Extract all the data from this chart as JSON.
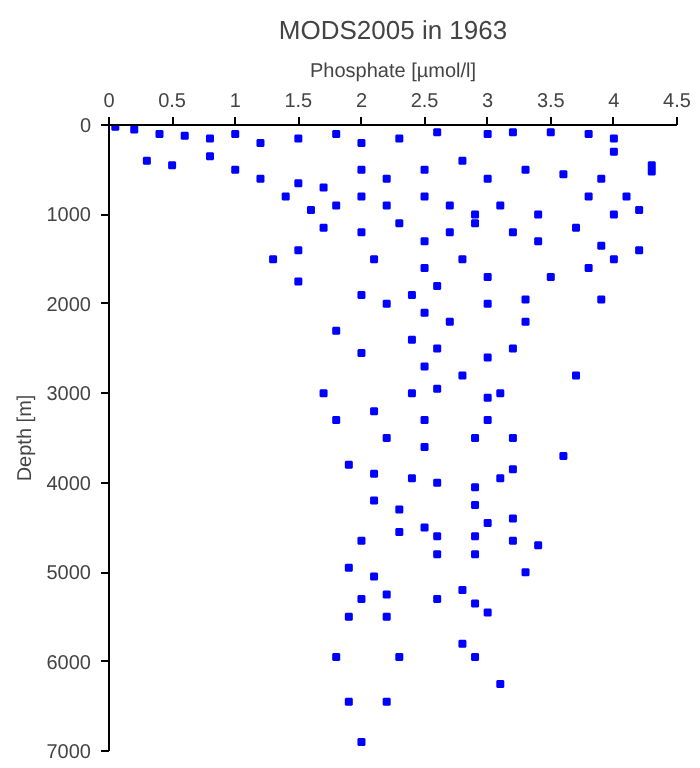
{
  "chart_data": {
    "type": "scatter",
    "title": "MODS2005 in 1963",
    "xlabel": "Phosphate [µmol/l]",
    "ylabel": "Depth [m]",
    "xlim": [
      0,
      4.5
    ],
    "xticks": [
      0,
      0.5,
      1,
      1.5,
      2,
      2.5,
      3,
      3.5,
      4,
      4.5
    ],
    "ylim": [
      7000,
      0
    ],
    "yticks": [
      0,
      1000,
      2000,
      3000,
      4000,
      5000,
      6000,
      7000
    ],
    "grid": false,
    "marker": "square",
    "series": [
      {
        "color": "#0000ff",
        "x": [
          0.05,
          0.2,
          0.4,
          0.6,
          0.8,
          1.0,
          1.2,
          1.5,
          1.8,
          2.0,
          2.3,
          2.6,
          3.0,
          3.2,
          3.5,
          3.8,
          4.0,
          4.3,
          4.3,
          0.3,
          0.5,
          0.8,
          1.0,
          1.2,
          1.5,
          1.7,
          2.0,
          2.2,
          2.5,
          2.8,
          3.0,
          3.3,
          3.6,
          3.9,
          4.0,
          1.4,
          1.6,
          1.8,
          2.0,
          2.2,
          2.5,
          2.7,
          2.9,
          3.1,
          3.4,
          3.8,
          4.1,
          4.0,
          4.2,
          1.7,
          2.0,
          2.3,
          2.5,
          2.7,
          2.9,
          3.2,
          3.4,
          3.7,
          3.9,
          4.2,
          4.0,
          1.3,
          1.5,
          2.1,
          2.5,
          2.8,
          3.0,
          3.5,
          3.8,
          1.5,
          2.0,
          2.4,
          2.6,
          3.0,
          3.3,
          3.9,
          2.2,
          2.5,
          2.7,
          1.8,
          2.4,
          2.6,
          3.2,
          3.3,
          2.0,
          2.5,
          2.8,
          3.0,
          3.7,
          1.7,
          2.4,
          2.6,
          3.0,
          3.1,
          1.8,
          2.1,
          2.5,
          3.0,
          2.2,
          2.5,
          2.9,
          3.2,
          3.6,
          1.9,
          2.1,
          2.4,
          2.6,
          2.9,
          3.1,
          3.2,
          2.1,
          2.3,
          2.5,
          2.9,
          3.0,
          3.2,
          2.0,
          2.3,
          2.6,
          2.9,
          3.2,
          3.4,
          1.9,
          2.1,
          2.6,
          2.9,
          3.3,
          2.0,
          2.2,
          2.6,
          2.8,
          2.9,
          1.9,
          2.2,
          3.0,
          2.8,
          2.9,
          1.8,
          2.3,
          1.9,
          2.2,
          3.1,
          2.0
        ],
        "values": [
          20,
          50,
          100,
          120,
          150,
          100,
          200,
          150,
          100,
          200,
          150,
          80,
          100,
          80,
          80,
          100,
          150,
          450,
          520,
          400,
          450,
          350,
          500,
          600,
          650,
          700,
          500,
          600,
          500,
          400,
          600,
          500,
          550,
          600,
          300,
          800,
          950,
          900,
          800,
          900,
          800,
          900,
          1000,
          900,
          1000,
          800,
          800,
          1000,
          950,
          1150,
          1200,
          1100,
          1300,
          1200,
          1100,
          1200,
          1300,
          1150,
          1350,
          1400,
          1500,
          1500,
          1400,
          1500,
          1600,
          1500,
          1700,
          1700,
          1600,
          1750,
          1900,
          1900,
          1800,
          2000,
          1950,
          1950,
          2000,
          2100,
          2200,
          2300,
          2400,
          2500,
          2500,
          2200,
          2550,
          2700,
          2800,
          2600,
          2800,
          3000,
          3000,
          2950,
          3050,
          3000,
          3300,
          3200,
          3300,
          3300,
          3500,
          3600,
          3500,
          3500,
          3700,
          3800,
          3900,
          3950,
          4000,
          4050,
          3950,
          3850,
          4200,
          4300,
          4500,
          4250,
          4450,
          4400,
          4650,
          4550,
          4600,
          4600,
          4650,
          4700,
          4950,
          5050,
          4800,
          4800,
          5000,
          5300,
          5250,
          5300,
          5200,
          5350,
          5500,
          5500,
          5450,
          5800,
          5950,
          5950,
          5950,
          6450,
          6450,
          6250,
          6900
        ]
      }
    ]
  }
}
